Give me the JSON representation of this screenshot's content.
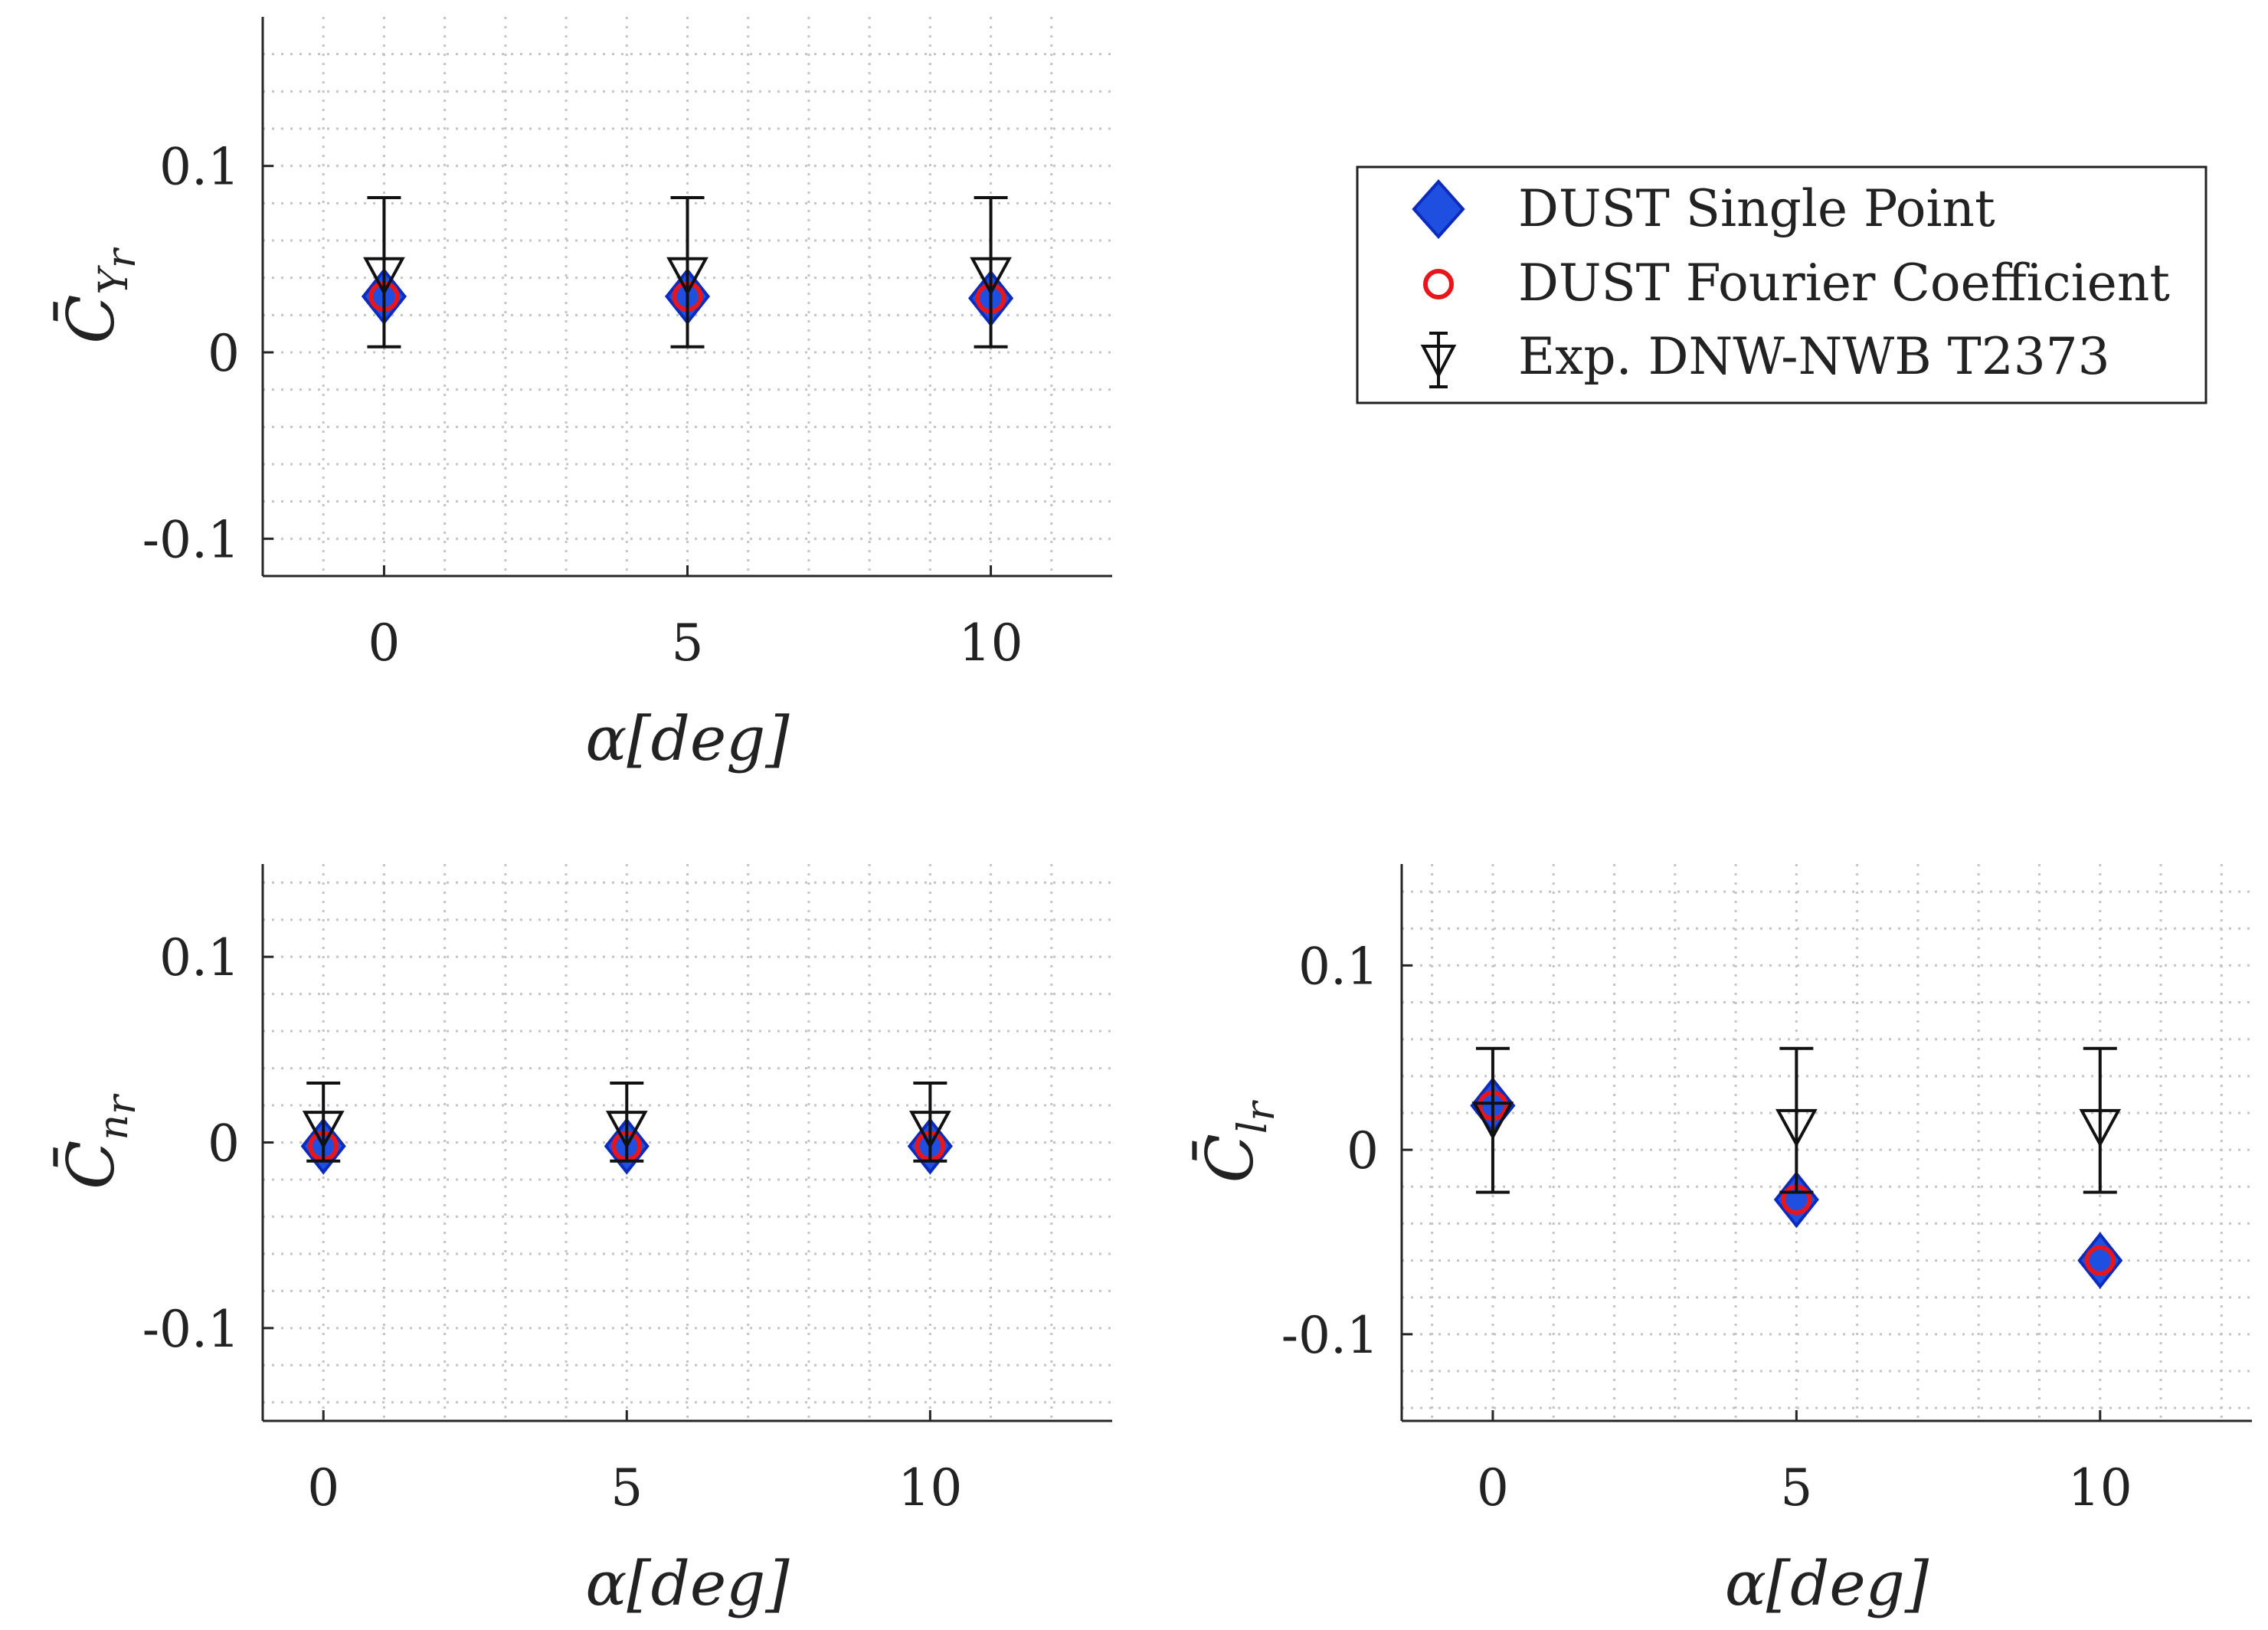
{
  "figure": {
    "type": "figure-3-panel-scatter-with-errorbars"
  },
  "legend": {
    "placement": "top-right",
    "entries": [
      {
        "label": "DUST Single Point",
        "marker": "diamond",
        "color": "#1f4fe0",
        "edge": "#0b2bbd"
      },
      {
        "label": "DUST Fourier Coefficient",
        "marker": "circle",
        "color": "#e8161a"
      },
      {
        "label": "Exp. DNW-NWB T2373",
        "marker": "triangle-down-errorbar",
        "color": "#111111"
      }
    ]
  },
  "chart_data": [
    {
      "type": "scatter",
      "id": "cy",
      "title": "",
      "xlabel": "α[deg]",
      "ylabel": {
        "base": "C̄",
        "sub": "Y",
        "subsub": "r"
      },
      "x": [
        0,
        5,
        10
      ],
      "xticks": [
        0,
        5,
        10
      ],
      "xtick_labels": [
        "0",
        "5",
        "10"
      ],
      "xlim": [
        -2,
        12
      ],
      "ylim": [
        -0.12,
        0.18
      ],
      "yticks": [
        -0.1,
        0,
        0.1
      ],
      "ytick_labels": [
        "-0.1",
        "0",
        "0.1"
      ],
      "grid": true,
      "series": [
        {
          "name": "DUST Single Point",
          "values": [
            0.03,
            0.03,
            0.029
          ]
        },
        {
          "name": "DUST Fourier Coefficient",
          "values": [
            0.03,
            0.03,
            0.029
          ]
        },
        {
          "name": "Exp. DNW-NWB T2373",
          "values": [
            0.042,
            0.042,
            0.042
          ],
          "err_low": [
            0.003,
            0.003,
            0.003
          ],
          "err_high": [
            0.083,
            0.083,
            0.083
          ]
        }
      ]
    },
    {
      "type": "scatter",
      "id": "cn",
      "title": "",
      "xlabel": "α[deg]",
      "ylabel": {
        "base": "C̄",
        "sub": "n",
        "subsub": "r"
      },
      "x": [
        0,
        5,
        10
      ],
      "xticks": [
        0,
        5,
        10
      ],
      "xtick_labels": [
        "0",
        "5",
        "10"
      ],
      "xlim": [
        -1,
        13
      ],
      "ylim": [
        -0.15,
        0.15
      ],
      "yticks": [
        -0.1,
        0,
        0.1
      ],
      "ytick_labels": [
        "-0.1",
        "0",
        "0.1"
      ],
      "grid": true,
      "series": [
        {
          "name": "DUST Single Point",
          "values": [
            -0.002,
            -0.002,
            -0.002
          ]
        },
        {
          "name": "DUST Fourier Coefficient",
          "values": [
            -0.002,
            -0.002,
            -0.002
          ]
        },
        {
          "name": "Exp. DNW-NWB T2373",
          "values": [
            0.008,
            0.008,
            0.008
          ],
          "err_low": [
            -0.01,
            -0.01,
            -0.01
          ],
          "err_high": [
            0.032,
            0.032,
            0.032
          ]
        }
      ]
    },
    {
      "type": "scatter",
      "id": "cl",
      "title": "",
      "xlabel": "α[deg]",
      "ylabel": {
        "base": "C̄",
        "sub": "l",
        "subsub": "r"
      },
      "x": [
        0,
        5,
        10
      ],
      "xticks": [
        0,
        5,
        10
      ],
      "xtick_labels": [
        "0",
        "5",
        "10"
      ],
      "xlim": [
        -1.5,
        12.5
      ],
      "ylim": [
        -0.147,
        0.155
      ],
      "yticks": [
        -0.1,
        0,
        0.1
      ],
      "ytick_labels": [
        "-0.1",
        "0",
        "0.1"
      ],
      "grid": true,
      "series": [
        {
          "name": "DUST Single Point",
          "values": [
            0.024,
            -0.027,
            -0.06
          ]
        },
        {
          "name": "DUST Fourier Coefficient",
          "values": [
            0.024,
            -0.027,
            -0.06
          ]
        },
        {
          "name": "Exp. DNW-NWB T2373",
          "values": [
            0.017,
            0.013,
            0.013
          ],
          "err_low": [
            -0.023,
            -0.023,
            -0.023
          ],
          "err_high": [
            0.055,
            0.055,
            0.055
          ]
        }
      ]
    }
  ]
}
